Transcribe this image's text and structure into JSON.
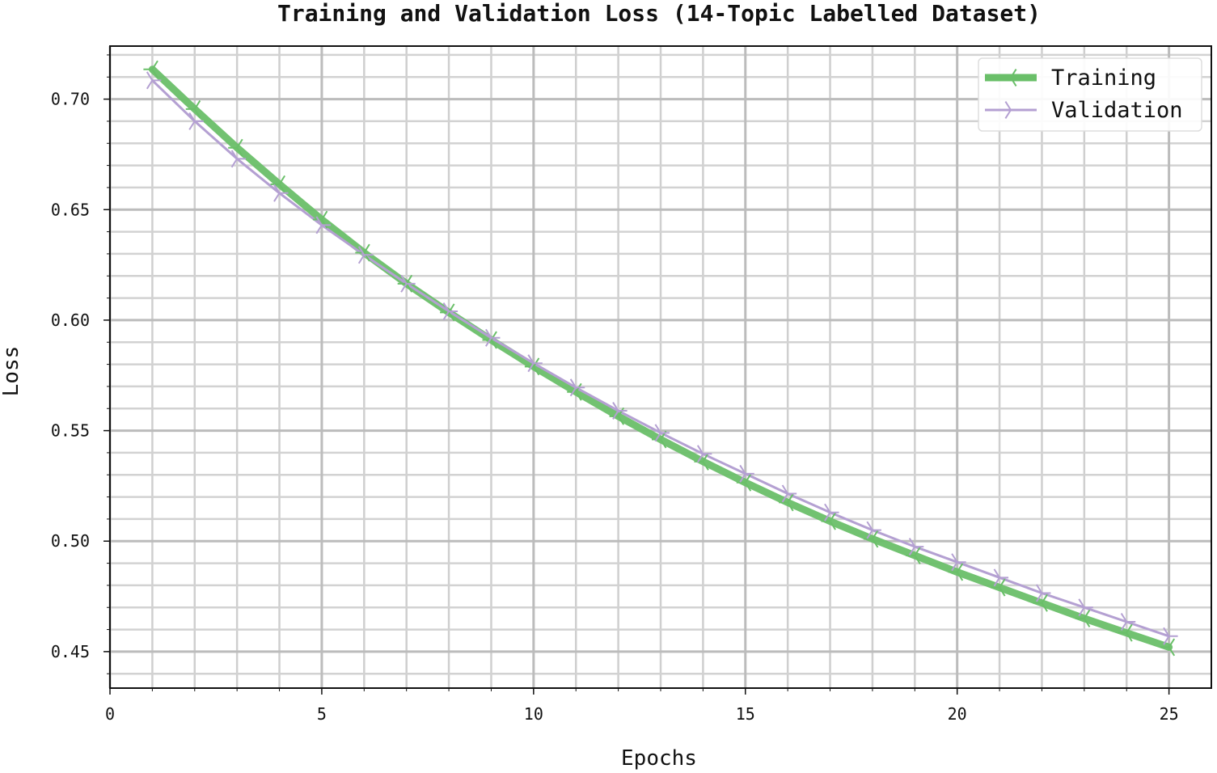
{
  "chart_data": {
    "type": "line",
    "title": "Training and Validation Loss (14-Topic Labelled Dataset)",
    "xlabel": "Epochs",
    "ylabel": "Loss",
    "xlim": [
      0,
      26
    ],
    "ylim": [
      0.4335,
      0.724
    ],
    "x_ticks": [
      0,
      5,
      10,
      15,
      20,
      25
    ],
    "x_tick_labels": [
      "0",
      "5",
      "10",
      "15",
      "20",
      "25"
    ],
    "y_ticks": [
      0.45,
      0.5,
      0.55,
      0.6,
      0.65,
      0.7
    ],
    "y_tick_labels": [
      "0.45",
      "0.50",
      "0.55",
      "0.60",
      "0.65",
      "0.70"
    ],
    "grid": true,
    "minor_grid": true,
    "legend_position": "top-right",
    "x": [
      1,
      2,
      3,
      4,
      5,
      6,
      7,
      8,
      9,
      10,
      11,
      12,
      13,
      14,
      15,
      16,
      17,
      18,
      19,
      20,
      21,
      22,
      23,
      24,
      25
    ],
    "series": [
      {
        "name": "Training",
        "color": "#6abf69",
        "marker": "tri-left",
        "values": [
          0.7135,
          0.6955,
          0.678,
          0.6615,
          0.6455,
          0.6305,
          0.6165,
          0.6035,
          0.591,
          0.579,
          0.5675,
          0.5565,
          0.546,
          0.536,
          0.5265,
          0.5175,
          0.509,
          0.501,
          0.4935,
          0.486,
          0.479,
          0.472,
          0.465,
          0.4585,
          0.452
        ]
      },
      {
        "name": "Validation",
        "color": "#b4a0d2",
        "marker": "tri-right",
        "values": [
          0.7085,
          0.69,
          0.673,
          0.6575,
          0.643,
          0.6295,
          0.6165,
          0.604,
          0.592,
          0.5805,
          0.5695,
          0.559,
          0.549,
          0.5395,
          0.5305,
          0.5215,
          0.513,
          0.505,
          0.4975,
          0.4905,
          0.4835,
          0.4765,
          0.47,
          0.4635,
          0.457
        ]
      }
    ]
  }
}
